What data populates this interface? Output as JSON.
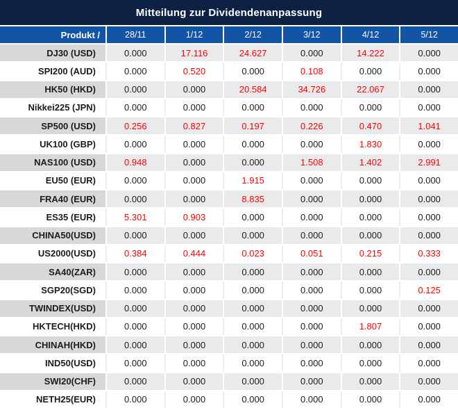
{
  "title": "Mitteilung zur Dividendenanpassung",
  "colors": {
    "title_bg": "#0d2144",
    "header_bg": "#1254a5",
    "stripe_label_bg": "#d6d8da",
    "stripe_cell_bg": "#e9eaeb",
    "row_white_bg": "#ffffff",
    "red_value": "#fe0000",
    "black_value": "#1c1c1c",
    "header_text": "#ffffff"
  },
  "chart_data": {
    "type": "table",
    "title": "Mitteilung zur Dividendenanpassung",
    "columns": [
      "Produkt /",
      "28/11",
      "1/12",
      "2/12",
      "3/12",
      "4/12",
      "5/12"
    ],
    "zero_display": "0.000",
    "highlight_rule": "values different from 0.000 are shown in red",
    "rows": [
      {
        "product": "DJ30 (USD)",
        "values": [
          "0.000",
          "17.116",
          "24.627",
          "0.000",
          "14.222",
          "0.000"
        ]
      },
      {
        "product": "SPI200 (AUD)",
        "values": [
          "0.000",
          "0.520",
          "0.000",
          "0.108",
          "0.000",
          "0.000"
        ]
      },
      {
        "product": "HK50 (HKD)",
        "values": [
          "0.000",
          "0.000",
          "20.584",
          "34.726",
          "22.067",
          "0.000"
        ]
      },
      {
        "product": "Nikkei225 (JPN)",
        "values": [
          "0.000",
          "0.000",
          "0.000",
          "0.000",
          "0.000",
          "0.000"
        ]
      },
      {
        "product": "SP500 (USD)",
        "values": [
          "0.256",
          "0.827",
          "0.197",
          "0.226",
          "0.470",
          "1.041"
        ]
      },
      {
        "product": "UK100 (GBP)",
        "values": [
          "0.000",
          "0.000",
          "0.000",
          "0.000",
          "1.830",
          "0.000"
        ]
      },
      {
        "product": "NAS100 (USD)",
        "values": [
          "0.948",
          "0.000",
          "0.000",
          "1.508",
          "1.402",
          "2.991"
        ]
      },
      {
        "product": "EU50 (EUR)",
        "values": [
          "0.000",
          "0.000",
          "1.915",
          "0.000",
          "0.000",
          "0.000"
        ]
      },
      {
        "product": "FRA40 (EUR)",
        "values": [
          "0.000",
          "0.000",
          "8.835",
          "0.000",
          "0.000",
          "0.000"
        ]
      },
      {
        "product": "ES35 (EUR)",
        "values": [
          "5.301",
          "0.903",
          "0.000",
          "0.000",
          "0.000",
          "0.000"
        ]
      },
      {
        "product": "CHINA50(USD)",
        "values": [
          "0.000",
          "0.000",
          "0.000",
          "0.000",
          "0.000",
          "0.000"
        ]
      },
      {
        "product": "US2000(USD)",
        "values": [
          "0.384",
          "0.444",
          "0.023",
          "0.051",
          "0.215",
          "0.333"
        ]
      },
      {
        "product": "SA40(ZAR)",
        "values": [
          "0.000",
          "0.000",
          "0.000",
          "0.000",
          "0.000",
          "0.000"
        ]
      },
      {
        "product": "SGP20(SGD)",
        "values": [
          "0.000",
          "0.000",
          "0.000",
          "0.000",
          "0.000",
          "0.125"
        ]
      },
      {
        "product": "TWINDEX(USD)",
        "values": [
          "0.000",
          "0.000",
          "0.000",
          "0.000",
          "0.000",
          "0.000"
        ]
      },
      {
        "product": "HKTECH(HKD)",
        "values": [
          "0.000",
          "0.000",
          "0.000",
          "0.000",
          "1.807",
          "0.000"
        ]
      },
      {
        "product": "CHINAH(HKD)",
        "values": [
          "0.000",
          "0.000",
          "0.000",
          "0.000",
          "0.000",
          "0.000"
        ]
      },
      {
        "product": "IND50(USD)",
        "values": [
          "0.000",
          "0.000",
          "0.000",
          "0.000",
          "0.000",
          "0.000"
        ]
      },
      {
        "product": "SWI20(CHF)",
        "values": [
          "0.000",
          "0.000",
          "0.000",
          "0.000",
          "0.000",
          "0.000"
        ]
      },
      {
        "product": "NETH25(EUR)",
        "values": [
          "0.000",
          "0.000",
          "0.000",
          "0.000",
          "0.000",
          "0.000"
        ]
      }
    ]
  }
}
